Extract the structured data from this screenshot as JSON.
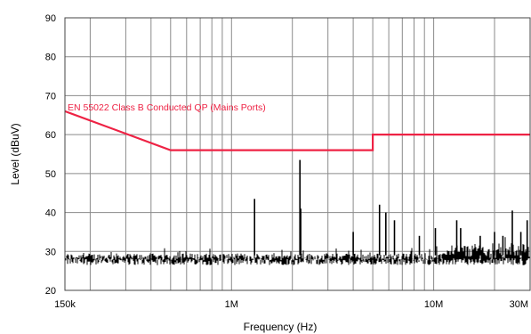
{
  "chart_data": {
    "type": "line",
    "title": "",
    "xlabel": "Frequency (Hz)",
    "ylabel": "Level (dBuV)",
    "xscale": "log",
    "xlim": [
      150000,
      30000000
    ],
    "ylim": [
      20,
      90
    ],
    "grid": true,
    "colors": {
      "limit": "#ee2244",
      "measurement": "#000000",
      "grid": "#8a8a8a",
      "frame": "#444444"
    },
    "x_ticks": [
      {
        "value": 150000,
        "label": "150k"
      },
      {
        "value": 1000000,
        "label": "1M"
      },
      {
        "value": 10000000,
        "label": "10M"
      },
      {
        "value": 30000000,
        "label": "30M"
      }
    ],
    "y_ticks": [
      {
        "value": 20,
        "label": "20"
      },
      {
        "value": 30,
        "label": "30"
      },
      {
        "value": 40,
        "label": "40"
      },
      {
        "value": 50,
        "label": "50"
      },
      {
        "value": 60,
        "label": "60"
      },
      {
        "value": 70,
        "label": "70"
      },
      {
        "value": 80,
        "label": "80"
      },
      {
        "value": 90,
        "label": "90"
      }
    ],
    "series": [
      {
        "name": "EN 55022 Class B Conducted QP (Mains Ports)",
        "kind": "limit",
        "x": [
          150000,
          500000,
          5000000,
          5000000,
          30000000
        ],
        "y": [
          66,
          56,
          56,
          60,
          60
        ]
      },
      {
        "kind": "measurement",
        "noise_floor_dbuv": [
          26.5,
          29.5
        ],
        "peaks": [
          {
            "x": 1300000,
            "y": 43.5
          },
          {
            "x": 2180000,
            "y": 53.5
          },
          {
            "x": 2200000,
            "y": 41
          },
          {
            "x": 4000000,
            "y": 35
          },
          {
            "x": 5400000,
            "y": 42
          },
          {
            "x": 5800000,
            "y": 40
          },
          {
            "x": 6400000,
            "y": 38
          },
          {
            "x": 8500000,
            "y": 34
          },
          {
            "x": 10200000,
            "y": 36
          },
          {
            "x": 13000000,
            "y": 38
          },
          {
            "x": 13600000,
            "y": 36
          },
          {
            "x": 17000000,
            "y": 34
          },
          {
            "x": 20000000,
            "y": 35
          },
          {
            "x": 22000000,
            "y": 34
          },
          {
            "x": 24500000,
            "y": 40.5
          },
          {
            "x": 27000000,
            "y": 35
          },
          {
            "x": 29000000,
            "y": 38
          }
        ]
      }
    ]
  }
}
